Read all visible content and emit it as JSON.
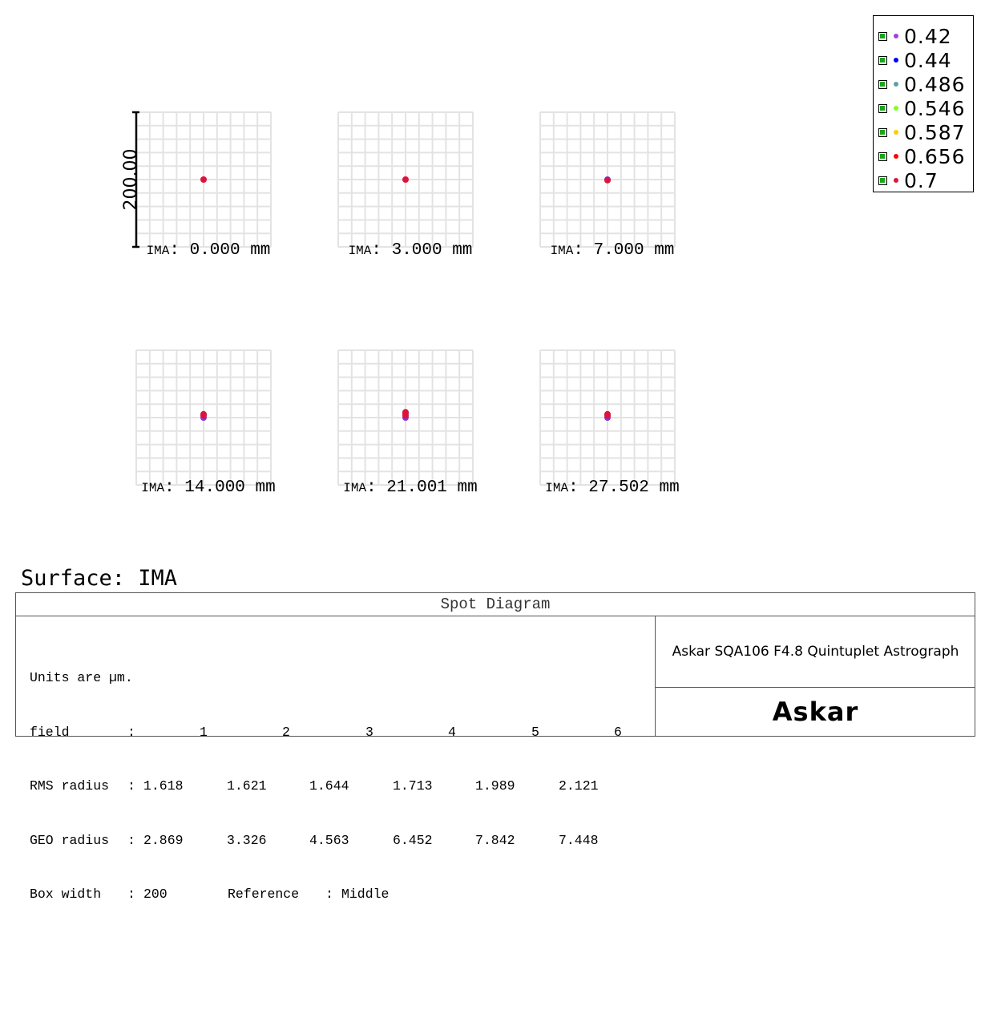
{
  "chart_data": {
    "type": "scatter",
    "title": "Spot Diagram",
    "surface_label": "Surface: IMA",
    "scale_bar_label": "200.00",
    "box_width_um": 200,
    "grid_divisions": 10,
    "fields": [
      {
        "label": "IMA: 0.000 mm",
        "index": "1"
      },
      {
        "label": "IMA: 3.000 mm",
        "index": "2"
      },
      {
        "label": "IMA: 7.000 mm",
        "index": "3"
      },
      {
        "label": "IMA: 14.000 mm",
        "index": "4"
      },
      {
        "label": "IMA: 21.001 mm",
        "index": "5"
      },
      {
        "label": "IMA: 27.502 mm",
        "index": "6"
      }
    ],
    "spot_offsets_um": [
      [
        [
          0,
          0
        ]
      ],
      [
        [
          0,
          0
        ]
      ],
      [
        [
          0,
          0
        ],
        [
          0,
          -1
        ]
      ],
      [
        [
          0,
          0
        ],
        [
          0,
          3
        ],
        [
          0,
          5
        ]
      ],
      [
        [
          0,
          0
        ],
        [
          0,
          3
        ],
        [
          0,
          6
        ],
        [
          0,
          8
        ]
      ],
      [
        [
          0,
          0
        ],
        [
          0,
          3
        ],
        [
          0,
          5
        ]
      ]
    ],
    "wavelengths": [
      {
        "label": "0.42",
        "color": "#a040e0"
      },
      {
        "label": "0.44",
        "color": "#0000ff"
      },
      {
        "label": "0.486",
        "color": "#5f9ea0"
      },
      {
        "label": "0.546",
        "color": "#80ff20"
      },
      {
        "label": "0.587",
        "color": "#ffcc00"
      },
      {
        "label": "0.656",
        "color": "#ff0000"
      },
      {
        "label": "0.7",
        "color": "#dc143c"
      }
    ],
    "spot_color": "#dc143c",
    "spot_secondary_color": "#7a3ce0",
    "legend_placement": "top-right",
    "grid": true
  },
  "panel": {
    "title": "Spot Diagram",
    "description": "Askar SQA106 F4.8 Quintuplet Astrograph",
    "logo": "Askar",
    "units_line": "Units are µm.",
    "field_label": "field",
    "field_sep": ":",
    "field_numbers": [
      "1",
      "2",
      "3",
      "4",
      "5",
      "6"
    ],
    "rms_label": "RMS radius",
    "rms_values": [
      "1.618",
      "1.621",
      "1.644",
      "1.713",
      "1.989",
      "2.121"
    ],
    "geo_label": "GEO radius",
    "geo_values": [
      "2.869",
      "3.326",
      "4.563",
      "6.452",
      "7.842",
      "7.448"
    ],
    "box_width_label": "Box width",
    "box_width_value": "200",
    "reference_label": "Reference",
    "reference_value": "Middle"
  }
}
